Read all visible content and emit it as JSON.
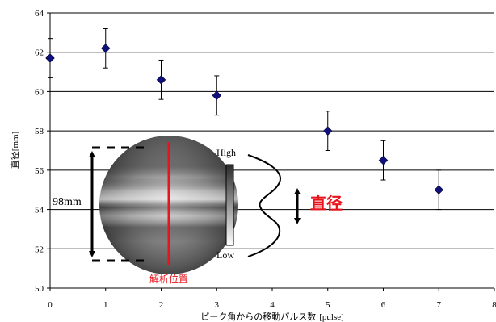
{
  "chart_data": {
    "type": "scatter",
    "xlabel": "ピーク角からの移動パルス数",
    "xlabel_unit": "[pulse]",
    "ylabel": "直径",
    "ylabel_unit": "[mm]",
    "xlim": [
      0,
      8
    ],
    "ylim": [
      50,
      64
    ],
    "x_ticks": [
      "0",
      "1",
      "2",
      "3",
      "4",
      "5",
      "6",
      "7",
      "8"
    ],
    "y_ticks": [
      "50",
      "52",
      "54",
      "56",
      "58",
      "60",
      "62",
      "64"
    ],
    "grid": "horizontal",
    "marker": "diamond",
    "marker_color": "#10107a",
    "points": [
      {
        "x": 0,
        "y": 61.7,
        "err": 1.0
      },
      {
        "x": 1,
        "y": 62.2,
        "err": 1.0
      },
      {
        "x": 2,
        "y": 60.6,
        "err": 1.0
      },
      {
        "x": 3,
        "y": 59.8,
        "err": 1.0
      },
      {
        "x": 5,
        "y": 58.0,
        "err": 1.0
      },
      {
        "x": 6,
        "y": 56.5,
        "err": 1.0
      },
      {
        "x": 7,
        "y": 55.0,
        "err": 1.0
      }
    ]
  },
  "inset": {
    "scale_label": "98mm",
    "analysis_label": "解析位置",
    "colorbar_high": "High",
    "colorbar_low": "Low",
    "diameter_label": "直径",
    "accent_color": "#e8141c"
  }
}
